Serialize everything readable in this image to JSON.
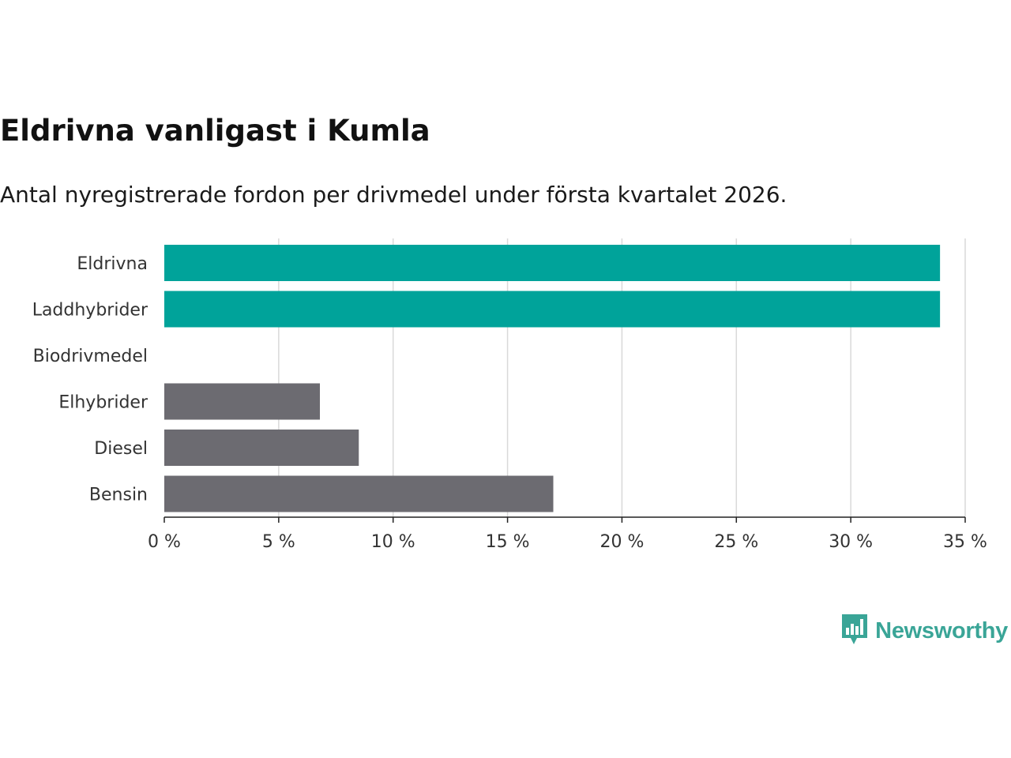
{
  "header": {
    "title": "Eldrivna vanligast i Kumla",
    "subtitle": "Antal nyregistrerade fordon per drivmedel under första kvartalet 2026."
  },
  "chart_data": {
    "type": "bar",
    "orientation": "horizontal",
    "title": "Eldrivna vanligast i Kumla",
    "subtitle": "Antal nyregistrerade fordon per drivmedel under första kvartalet 2026.",
    "categories": [
      "Eldrivna",
      "Laddhybrider",
      "Biodrivmedel",
      "Elhybrider",
      "Diesel",
      "Bensin"
    ],
    "values": [
      33.9,
      33.9,
      0,
      6.8,
      8.5,
      17.0
    ],
    "highlight": [
      true,
      true,
      false,
      false,
      false,
      false
    ],
    "colors": {
      "highlight": "#00a39a",
      "default": "#6c6b71",
      "grid": "#d9d9d9",
      "axis": "#222222"
    },
    "xlabel": "",
    "ylabel": "",
    "xlim": [
      0,
      35
    ],
    "ticks": [
      0,
      5,
      10,
      15,
      20,
      25,
      30,
      35
    ],
    "tick_labels": [
      "0 %",
      "5 %",
      "10 %",
      "15 %",
      "20 %",
      "25 %",
      "30 %",
      "35 %"
    ],
    "unit": "%",
    "grid": true,
    "legend": "none"
  },
  "branding": {
    "name": "Newsworthy",
    "icon": "newsworthy-logo-icon",
    "color": "#3aa597"
  }
}
